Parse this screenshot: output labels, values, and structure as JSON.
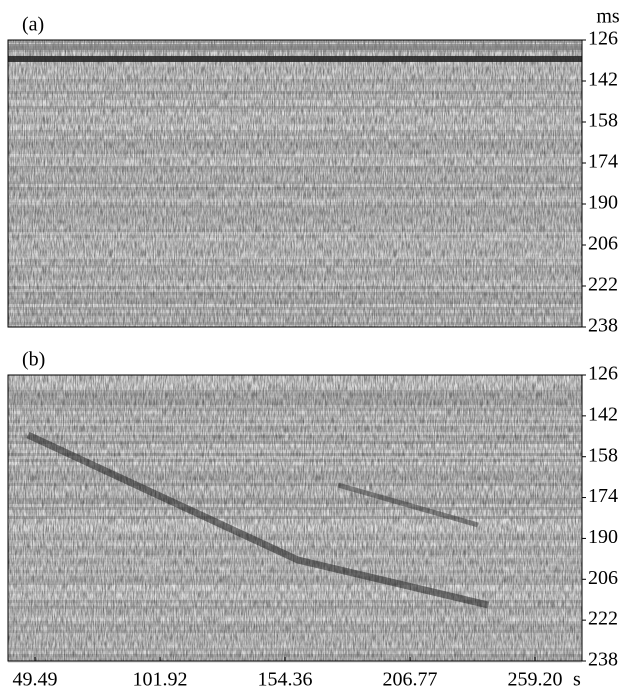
{
  "chart_data": [
    {
      "type": "image",
      "title": "(a)",
      "y_label": "ms",
      "ylim": [
        126,
        238
      ],
      "yticks": [
        126,
        142,
        158,
        174,
        190,
        206,
        222,
        238
      ]
    },
    {
      "type": "image",
      "title": "(b)",
      "x_label": "s",
      "ylim": [
        126,
        238
      ],
      "yticks": [
        126,
        142,
        158,
        174,
        190,
        206,
        222,
        238
      ],
      "xlim": [
        49.49,
        259.2
      ],
      "xticks": [
        49.49,
        101.92,
        154.36,
        206.77,
        {
          "value": 259.2,
          "label": "259.20"
        }
      ]
    }
  ]
}
